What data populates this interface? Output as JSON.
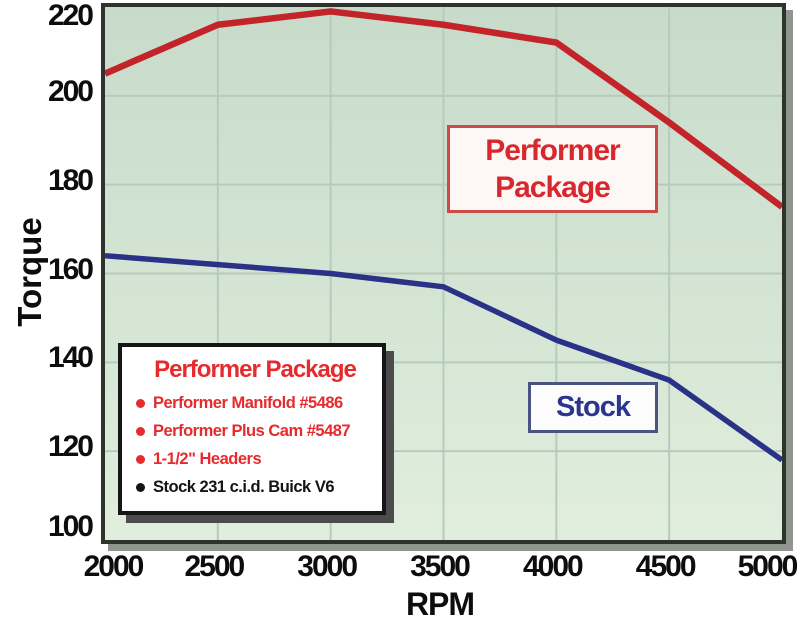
{
  "colors": {
    "performer_line": "#c3242a",
    "stock_line": "#2a3288",
    "grid": "#b7cbbc",
    "legend_red": "#e62a2e",
    "legend_black": "#141414"
  },
  "chart_data": {
    "type": "line",
    "xlabel": "RPM",
    "ylabel": "Torque",
    "xlim": [
      2000,
      5000
    ],
    "ylim": [
      100,
      220
    ],
    "x_ticks": [
      2000,
      2500,
      3000,
      3500,
      4000,
      4500,
      5000
    ],
    "y_ticks": [
      100,
      120,
      140,
      160,
      180,
      200,
      220
    ],
    "grid": true,
    "legend_position": "inside-bottom-left",
    "x": [
      2000,
      2500,
      3000,
      3500,
      4000,
      4500,
      5000
    ],
    "series": [
      {
        "name": "Performer Package",
        "color": "#c3242a",
        "values": [
          205,
          216,
          219,
          216,
          212,
          194,
          175
        ]
      },
      {
        "name": "Stock",
        "color": "#2a3288",
        "values": [
          164,
          162,
          160,
          157,
          145,
          136,
          118
        ]
      }
    ]
  },
  "annotations": {
    "performer_line1": "Performer",
    "performer_line2": "Package",
    "stock": "Stock"
  },
  "legend": {
    "title": "Performer Package",
    "items": [
      {
        "text": "Performer Manifold #5486",
        "color": "red"
      },
      {
        "text": "Performer Plus Cam #5487",
        "color": "red"
      },
      {
        "text": "1-1/2\" Headers",
        "color": "red"
      },
      {
        "text": "Stock 231 c.i.d. Buick V6",
        "color": "black"
      }
    ]
  }
}
